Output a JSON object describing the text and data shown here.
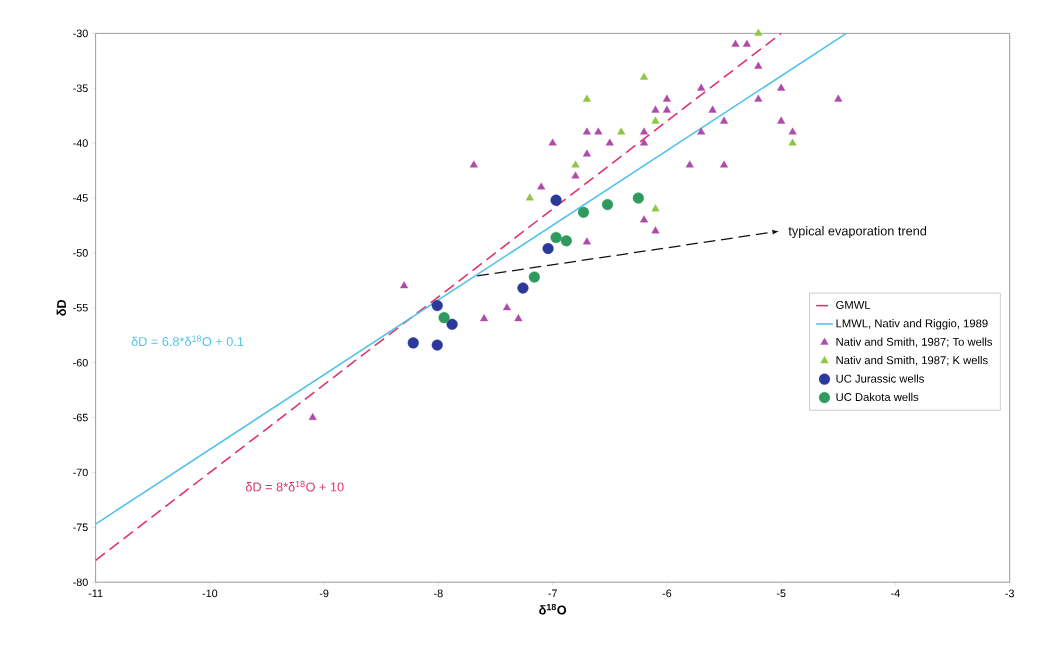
{
  "chart_data": {
    "type": "scatter",
    "xlabel": "δ$^{18}$O",
    "ylabel": "δD",
    "xlim": [
      -11,
      -3
    ],
    "ylim": [
      -80,
      -30
    ],
    "xticks": [
      -11,
      -10,
      -9,
      -8,
      -7,
      -6,
      -5,
      -4,
      -3
    ],
    "yticks": [
      -80,
      -75,
      -70,
      -65,
      -60,
      -55,
      -50,
      -45,
      -40,
      -35,
      -30
    ],
    "legend": "right",
    "grid": false,
    "annotations": [
      "δD = 8*δ$^{18}$O + 10",
      "δD = 6.8*δ$^{18}$O + 0.1",
      "typical evaporation trend"
    ],
    "series": [
      {
        "name": "GMWL",
        "type": "line",
        "line_style": "dashed",
        "marker": "none",
        "color": "#e0306e",
        "x": [
          -11,
          -5
        ],
        "values": [
          -78,
          -30
        ]
      },
      {
        "name": "LMWL, Nativ and Riggio, 1989",
        "type": "line",
        "line_style": "solid",
        "marker": "none",
        "color": "#4fc3e8",
        "x": [
          -11,
          -4.43
        ],
        "values": [
          -74.7,
          -30
        ]
      },
      {
        "type": "line",
        "line_style": "dashed",
        "marker": "none",
        "color": "#111111",
        "x": [
          -7.66,
          -5.07
        ],
        "values": [
          -52.1,
          -48.1
        ]
      },
      {
        "name": "Nativ and Smith, 1987; To wells",
        "marker": "triangle",
        "color": "#b04aa8",
        "x": [
          -7.69,
          -7.1,
          -8.3,
          -7.6,
          -7.4,
          -7.3,
          -6.7,
          -6.2,
          -6.1,
          -6.8,
          -7.0,
          -6.7,
          -6.5,
          -5.8,
          -5.4,
          -5.3,
          -5.2,
          -5.7,
          -6.0,
          -5.0,
          -5.2,
          -4.5,
          -6.1,
          -6.0,
          -5.6,
          -5.5,
          -5.0,
          -6.7,
          -6.6,
          -6.2,
          -5.7,
          -4.9,
          -6.2,
          -5.5,
          -9.1
        ],
        "values": [
          -42,
          -44,
          -53,
          -56,
          -55,
          -56,
          -49,
          -47,
          -48,
          -43,
          -40,
          -41,
          -40,
          -42,
          -31,
          -31,
          -33,
          -35,
          -36,
          -35,
          -36,
          -36,
          -37,
          -37,
          -37,
          -38,
          -38,
          -39,
          -39,
          -39,
          -39,
          -39,
          -40,
          -42,
          -65
        ]
      },
      {
        "name": "Nativ and Smith, 1987; K wells",
        "marker": "triangle",
        "color": "#8dc63f",
        "x": [
          -7.2,
          -6.8,
          -6.1,
          -5.2,
          -6.2,
          -6.7,
          -6.1,
          -6.4,
          -4.9
        ],
        "values": [
          -45,
          -42,
          -46,
          -30,
          -34,
          -36,
          -38,
          -39,
          -40
        ]
      },
      {
        "name": "UC Jurassic wells",
        "marker": "circle",
        "color": "#2b3a9a",
        "x": [
          -6.97,
          -7.04,
          -7.26,
          -8.01,
          -7.88,
          -8.22,
          -8.01
        ],
        "values": [
          -45.2,
          -49.6,
          -53.2,
          -54.8,
          -56.5,
          -58.2,
          -58.4
        ]
      },
      {
        "name": "UC Dakota wells",
        "marker": "circle",
        "color": "#2e9a5e",
        "x": [
          -6.73,
          -6.52,
          -6.25,
          -6.97,
          -6.88,
          -7.16,
          -7.95
        ],
        "values": [
          -46.3,
          -45.6,
          -45.0,
          -48.6,
          -48.9,
          -52.2,
          -55.9
        ]
      }
    ]
  }
}
